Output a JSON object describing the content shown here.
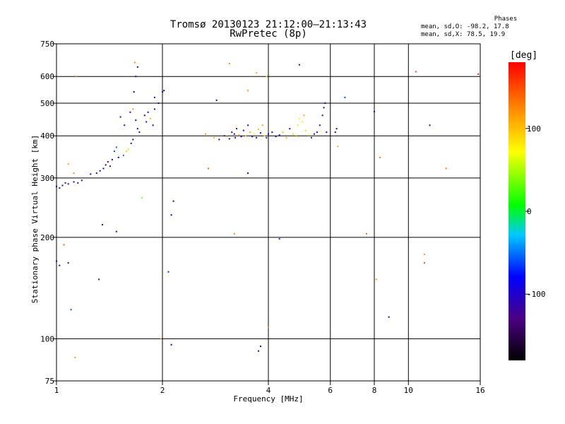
{
  "header": {
    "title_line1": "Tromsø 20130123 21:12:00–21:13:43",
    "title_line2": "RwPretec (8p)"
  },
  "stats": {
    "heading": "Phases",
    "o_line": "mean, sd,O: -98.2, 17.8",
    "x_line": "mean, sd,X:  78.5, 19.9"
  },
  "colorbar": {
    "label": "[deg]",
    "range": [
      -180,
      180
    ],
    "ticks": [
      {
        "v": 100,
        "label": "100"
      },
      {
        "v": 0,
        "label": "0"
      },
      {
        "v": -100,
        "label": "-100"
      }
    ]
  },
  "chart_data": {
    "type": "scatter",
    "title": "Tromsø 20130123 21:12:00–21:13:43",
    "subtitle": "RwPretec (8p)",
    "xlabel": "Frequency [MHz]",
    "ylabel": "Stationary phase Virtual Height [km]",
    "x_scale": "log",
    "y_scale": "log",
    "xlim": [
      1,
      16
    ],
    "ylim": [
      75,
      750
    ],
    "grid": true,
    "xticks": [
      {
        "v": 1,
        "label": "1"
      },
      {
        "v": 2,
        "label": "2"
      },
      {
        "v": 4,
        "label": "4"
      },
      {
        "v": 6,
        "label": "6"
      },
      {
        "v": 8,
        "label": "8"
      },
      {
        "v": 10,
        "label": "10"
      },
      {
        "v": 16,
        "label": "16"
      }
    ],
    "yticks": [
      {
        "v": 75,
        "label": "75"
      },
      {
        "v": 100,
        "label": "100"
      },
      {
        "v": 200,
        "label": "200"
      },
      {
        "v": 300,
        "label": "300"
      },
      {
        "v": 400,
        "label": "400"
      },
      {
        "v": 500,
        "label": "500"
      },
      {
        "v": 600,
        "label": "600"
      },
      {
        "v": 750,
        "label": "750"
      }
    ],
    "color_variable": "phase [deg]",
    "points": [
      [
        1.0,
        283,
        -110
      ],
      [
        1.02,
        280,
        -112
      ],
      [
        1.04,
        285,
        -108
      ],
      [
        1.06,
        290,
        -115
      ],
      [
        1.08,
        288,
        -110
      ],
      [
        1.12,
        292,
        -105
      ],
      [
        1.15,
        290,
        -110
      ],
      [
        1.18,
        295,
        -112
      ],
      [
        1.25,
        308,
        -105
      ],
      [
        1.3,
        310,
        -110
      ],
      [
        1.33,
        315,
        -108
      ],
      [
        1.36,
        320,
        -112
      ],
      [
        1.38,
        328,
        -106
      ],
      [
        1.4,
        335,
        -110
      ],
      [
        1.42,
        325,
        -115
      ],
      [
        1.44,
        340,
        -108
      ],
      [
        1.46,
        360,
        -60
      ],
      [
        1.48,
        370,
        -55
      ],
      [
        1.5,
        345,
        -100
      ],
      [
        1.55,
        350,
        -50
      ],
      [
        1.58,
        360,
        90
      ],
      [
        1.6,
        365,
        60
      ],
      [
        1.63,
        380,
        -108
      ],
      [
        1.65,
        390,
        -105
      ],
      [
        1.52,
        455,
        -110
      ],
      [
        1.56,
        430,
        -108
      ],
      [
        1.62,
        470,
        -112
      ],
      [
        1.65,
        480,
        120
      ],
      [
        1.68,
        445,
        -110
      ],
      [
        1.7,
        420,
        -105
      ],
      [
        1.72,
        410,
        -108
      ],
      [
        1.66,
        540,
        -110
      ],
      [
        1.68,
        600,
        -115
      ],
      [
        1.7,
        640,
        -110
      ],
      [
        1.67,
        660,
        120
      ],
      [
        1.78,
        460,
        -100
      ],
      [
        1.8,
        440,
        -108
      ],
      [
        1.82,
        470,
        -112
      ],
      [
        1.85,
        450,
        100
      ],
      [
        1.88,
        430,
        -110
      ],
      [
        1.9,
        480,
        -105
      ],
      [
        1.95,
        500,
        -110
      ],
      [
        2.0,
        540,
        -115
      ],
      [
        2.02,
        545,
        -108
      ],
      [
        1.9,
        520,
        -110
      ],
      [
        1.08,
        330,
        110
      ],
      [
        1.12,
        310,
        120
      ],
      [
        1.14,
        600,
        130
      ],
      [
        1.05,
        190,
        140
      ],
      [
        1.02,
        165,
        -110
      ],
      [
        1.0,
        170,
        -115
      ],
      [
        1.08,
        168,
        -110
      ],
      [
        1.1,
        122,
        -60
      ],
      [
        1.13,
        88,
        120
      ],
      [
        1.35,
        218,
        -110
      ],
      [
        1.48,
        208,
        -105
      ],
      [
        1.75,
        262,
        40
      ],
      [
        2.08,
        158,
        -70
      ],
      [
        2.12,
        233,
        -80
      ],
      [
        2.15,
        256,
        -110
      ],
      [
        1.98,
        100,
        120
      ],
      [
        2.12,
        96,
        -100
      ],
      [
        1.32,
        150,
        -120
      ],
      [
        2.65,
        405,
        120
      ],
      [
        2.7,
        320,
        140
      ],
      [
        2.8,
        395,
        110
      ],
      [
        2.9,
        390,
        -110
      ],
      [
        3.0,
        400,
        -108
      ],
      [
        3.05,
        398,
        110
      ],
      [
        3.1,
        392,
        -105
      ],
      [
        3.15,
        410,
        -110
      ],
      [
        3.2,
        405,
        -112
      ],
      [
        3.22,
        395,
        -108
      ],
      [
        3.25,
        420,
        -110
      ],
      [
        3.3,
        402,
        120
      ],
      [
        3.35,
        398,
        -105
      ],
      [
        3.4,
        415,
        -110
      ],
      [
        3.45,
        400,
        100
      ],
      [
        3.5,
        430,
        -108
      ],
      [
        3.55,
        410,
        110
      ],
      [
        3.6,
        398,
        -110
      ],
      [
        3.65,
        405,
        80
      ],
      [
        3.7,
        395,
        -112
      ],
      [
        3.75,
        418,
        100
      ],
      [
        3.8,
        408,
        -110
      ],
      [
        3.85,
        430,
        110
      ],
      [
        3.9,
        400,
        90
      ],
      [
        3.95,
        395,
        -110
      ],
      [
        4.0,
        405,
        -108
      ],
      [
        4.1,
        410,
        -112
      ],
      [
        4.2,
        398,
        -110
      ],
      [
        4.3,
        402,
        -105
      ],
      [
        4.4,
        410,
        100
      ],
      [
        4.5,
        395,
        110
      ],
      [
        4.6,
        420,
        -110
      ],
      [
        4.7,
        405,
        95
      ],
      [
        4.8,
        398,
        80
      ],
      [
        4.85,
        430,
        60
      ],
      [
        4.9,
        450,
        70
      ],
      [
        5.0,
        440,
        80
      ],
      [
        5.05,
        460,
        110
      ],
      [
        5.1,
        415,
        90
      ],
      [
        5.2,
        402,
        85
      ],
      [
        5.3,
        395,
        -110
      ],
      [
        5.4,
        405,
        -112
      ],
      [
        5.5,
        410,
        -108
      ],
      [
        5.6,
        430,
        -110
      ],
      [
        5.7,
        460,
        -105
      ],
      [
        5.75,
        485,
        -110
      ],
      [
        5.8,
        500,
        -112
      ],
      [
        5.85,
        410,
        -108
      ],
      [
        6.2,
        410,
        -110
      ],
      [
        6.25,
        420,
        -105
      ],
      [
        6.3,
        372,
        110
      ],
      [
        6.6,
        520,
        -60
      ],
      [
        4.3,
        198,
        -70
      ],
      [
        3.8,
        95,
        -100
      ],
      [
        4.0,
        108,
        120
      ],
      [
        3.75,
        92,
        -100
      ],
      [
        3.5,
        310,
        -110
      ],
      [
        3.5,
        545,
        120
      ],
      [
        3.2,
        205,
        130
      ],
      [
        3.1,
        655,
        120
      ],
      [
        3.7,
        615,
        110
      ],
      [
        2.85,
        510,
        -90
      ],
      [
        3.95,
        600,
        100
      ],
      [
        4.9,
        650,
        -110
      ],
      [
        8.0,
        472,
        -110
      ],
      [
        8.3,
        345,
        130
      ],
      [
        7.6,
        205,
        140
      ],
      [
        8.1,
        150,
        120
      ],
      [
        8.8,
        116,
        -90
      ],
      [
        10.5,
        620,
        150
      ],
      [
        11.5,
        430,
        -110
      ],
      [
        12.8,
        320,
        130
      ],
      [
        11.1,
        168,
        150
      ],
      [
        11.1,
        178,
        120
      ],
      [
        15.8,
        610,
        175
      ]
    ]
  }
}
